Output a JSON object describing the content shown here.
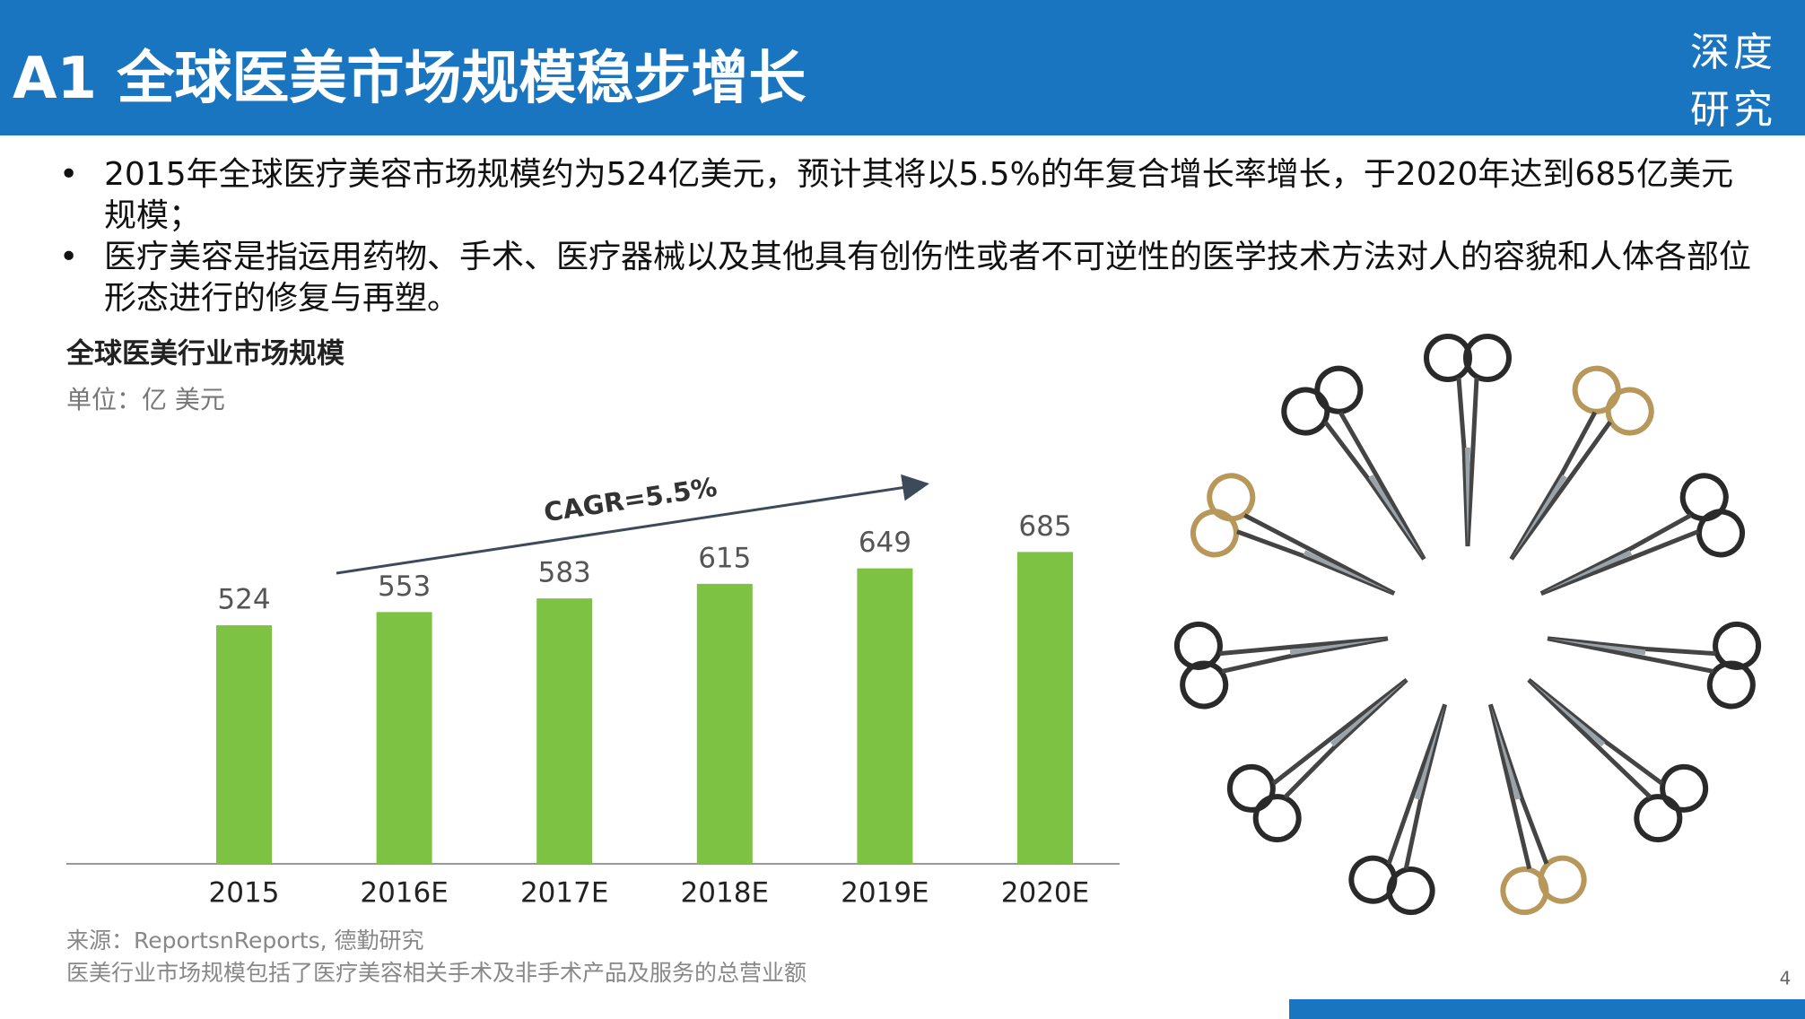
{
  "header": {
    "title": "A1 全球医美市场规模稳步增长",
    "logo": [
      "深度",
      "研究"
    ]
  },
  "bullets": [
    "2015年全球医疗美容市场规模约为524亿美元，预计其将以5.5%的年复合增长率增长，于2020年达到685亿美元规模；",
    "医疗美容是指运用药物、手术、医疗器械以及其他具有创伤性或者不可逆性的医学技术方法对人的容貌和人体各部位形态进行的修复与再塑。"
  ],
  "chart_data": {
    "type": "bar",
    "title": "全球医美行业市场规模",
    "subtitle": "单位：亿 美元",
    "categories": [
      "2015",
      "2016E",
      "2017E",
      "2018E",
      "2019E",
      "2020E"
    ],
    "values": [
      524,
      553,
      583,
      615,
      649,
      685
    ],
    "color": "#7dc242",
    "ylim": [
      0,
      800
    ],
    "annotation": "CAGR=5.5%"
  },
  "footnotes": [
    "来源：ReportsnReports, 德勤研究",
    "医美行业市场规模包括了医疗美容相关手术及非手术产品及服务的总营业额"
  ],
  "page_number": "4"
}
